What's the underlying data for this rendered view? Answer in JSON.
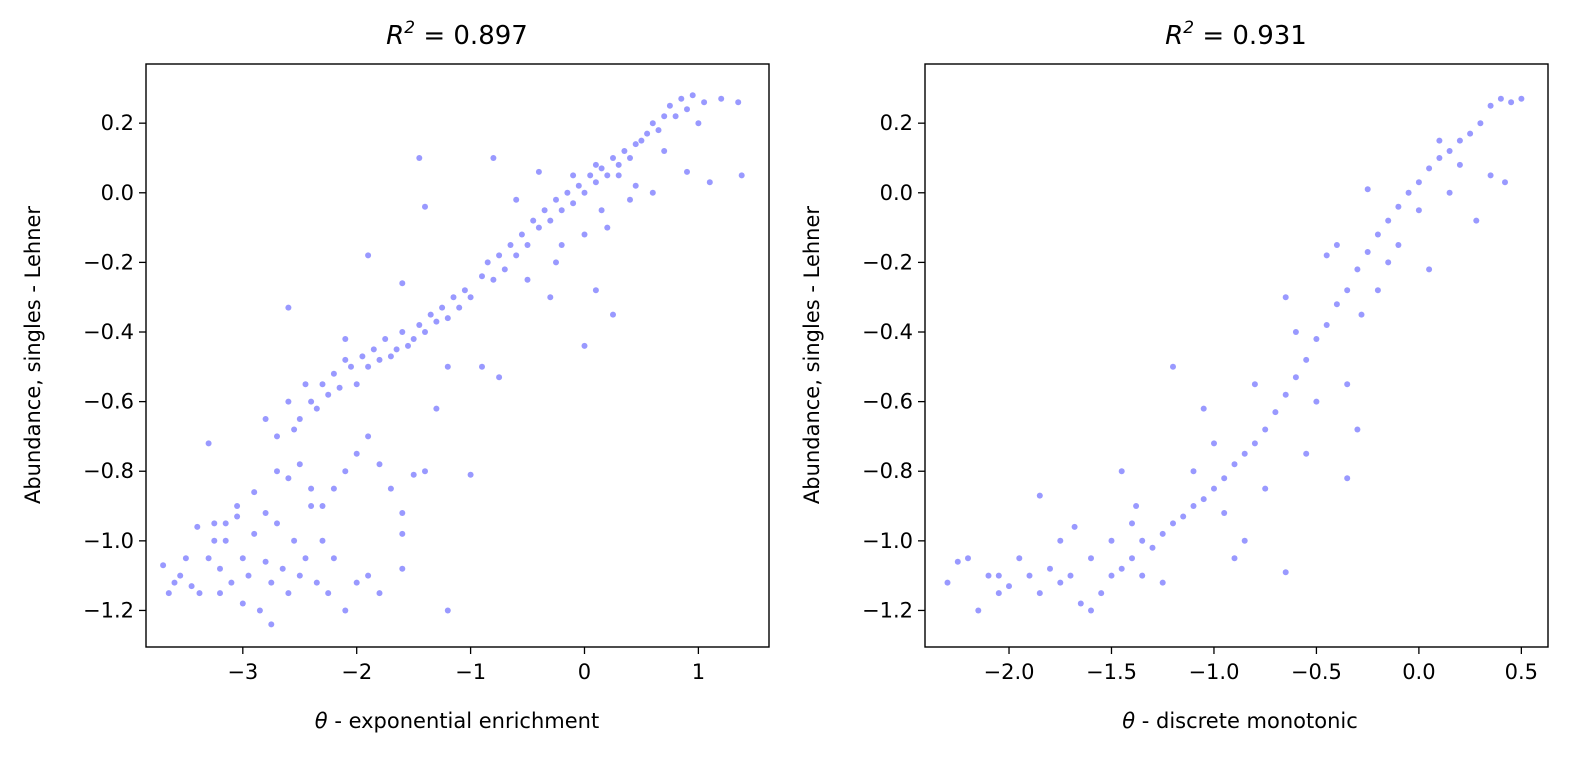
{
  "chart_data": [
    {
      "type": "scatter",
      "title_prefix": "R",
      "title_sup": "2",
      "title_value": "0.897",
      "xlabel_symbol": "θ",
      "xlabel": "- exponential enrichment",
      "ylabel": "Abundance, singles - Lehner",
      "xlim": [
        -3.85,
        1.62
      ],
      "ylim": [
        -1.305,
        0.37
      ],
      "xticks": [
        -3,
        -2,
        -1,
        0,
        1
      ],
      "xtick_labels": [
        "−3",
        "−2",
        "−1",
        "0",
        "1"
      ],
      "yticks": [
        0.2,
        0.0,
        -0.2,
        -0.4,
        -0.6,
        -0.8,
        -1.0,
        -1.2
      ],
      "ytick_labels": [
        "0.2",
        "0.0",
        "−0.2",
        "−0.4",
        "−0.6",
        "−0.8",
        "−1.0",
        "−1.2"
      ],
      "marker_color": "#0000ff",
      "marker_alpha": 0.4,
      "grid": false,
      "points": [
        [
          -3.7,
          -1.07
        ],
        [
          -3.65,
          -1.15
        ],
        [
          -3.6,
          -1.12
        ],
        [
          -3.55,
          -1.1
        ],
        [
          -3.5,
          -1.05
        ],
        [
          -3.45,
          -1.13
        ],
        [
          -3.4,
          -0.96
        ],
        [
          -3.38,
          -1.15
        ],
        [
          -3.3,
          -1.05
        ],
        [
          -3.25,
          -1.0
        ],
        [
          -3.2,
          -1.08
        ],
        [
          -3.2,
          -1.15
        ],
        [
          -3.15,
          -0.95
        ],
        [
          -3.1,
          -1.12
        ],
        [
          -3.05,
          -0.9
        ],
        [
          -3.0,
          -1.05
        ],
        [
          -3.0,
          -1.18
        ],
        [
          -2.95,
          -1.1
        ],
        [
          -2.9,
          -0.98
        ],
        [
          -2.85,
          -1.2
        ],
        [
          -2.8,
          -1.06
        ],
        [
          -2.75,
          -1.12
        ],
        [
          -2.75,
          -1.24
        ],
        [
          -2.7,
          -0.95
        ],
        [
          -2.65,
          -1.08
        ],
        [
          -2.6,
          -1.15
        ],
        [
          -2.55,
          -1.0
        ],
        [
          -2.5,
          -1.1
        ],
        [
          -2.45,
          -1.05
        ],
        [
          -2.4,
          -0.9
        ],
        [
          -2.35,
          -1.12
        ],
        [
          -2.3,
          -1.0
        ],
        [
          -2.25,
          -1.15
        ],
        [
          -2.2,
          -1.05
        ],
        [
          -2.1,
          -1.2
        ],
        [
          -2.0,
          -1.12
        ],
        [
          -1.9,
          -1.1
        ],
        [
          -1.8,
          -1.15
        ],
        [
          -1.6,
          -1.08
        ],
        [
          -1.2,
          -1.2
        ],
        [
          -3.3,
          -0.72
        ],
        [
          -3.25,
          -0.95
        ],
        [
          -3.15,
          -1.0
        ],
        [
          -3.05,
          -0.93
        ],
        [
          -2.9,
          -0.86
        ],
        [
          -2.8,
          -0.92
        ],
        [
          -2.7,
          -0.8
        ],
        [
          -2.6,
          -0.82
        ],
        [
          -2.5,
          -0.78
        ],
        [
          -2.4,
          -0.85
        ],
        [
          -2.3,
          -0.9
        ],
        [
          -2.2,
          -0.85
        ],
        [
          -2.1,
          -0.8
        ],
        [
          -2.0,
          -0.75
        ],
        [
          -1.9,
          -0.7
        ],
        [
          -1.8,
          -0.78
        ],
        [
          -1.7,
          -0.85
        ],
        [
          -1.6,
          -0.92
        ],
        [
          -1.5,
          -0.81
        ],
        [
          -1.4,
          -0.8
        ],
        [
          -1.0,
          -0.81
        ],
        [
          -1.6,
          -0.98
        ],
        [
          -2.8,
          -0.65
        ],
        [
          -2.7,
          -0.7
        ],
        [
          -2.6,
          -0.6
        ],
        [
          -2.55,
          -0.68
        ],
        [
          -2.5,
          -0.65
        ],
        [
          -2.45,
          -0.55
        ],
        [
          -2.4,
          -0.6
        ],
        [
          -2.35,
          -0.62
        ],
        [
          -2.3,
          -0.55
        ],
        [
          -2.25,
          -0.58
        ],
        [
          -2.2,
          -0.52
        ],
        [
          -2.15,
          -0.56
        ],
        [
          -2.1,
          -0.48
        ],
        [
          -2.05,
          -0.5
        ],
        [
          -2.0,
          -0.55
        ],
        [
          -1.95,
          -0.47
        ],
        [
          -1.9,
          -0.5
        ],
        [
          -1.85,
          -0.45
        ],
        [
          -1.8,
          -0.48
        ],
        [
          -1.75,
          -0.42
        ],
        [
          -1.7,
          -0.47
        ],
        [
          -1.65,
          -0.45
        ],
        [
          -1.6,
          -0.4
        ],
        [
          -1.55,
          -0.44
        ],
        [
          -1.5,
          -0.42
        ],
        [
          -1.45,
          -0.38
        ],
        [
          -1.4,
          -0.4
        ],
        [
          -1.35,
          -0.35
        ],
        [
          -1.3,
          -0.37
        ],
        [
          -1.25,
          -0.33
        ],
        [
          -1.2,
          -0.36
        ],
        [
          -1.15,
          -0.3
        ],
        [
          -1.1,
          -0.33
        ],
        [
          -1.05,
          -0.28
        ],
        [
          -1.0,
          -0.3
        ],
        [
          -2.6,
          -0.33
        ],
        [
          -2.1,
          -0.42
        ],
        [
          -1.9,
          -0.18
        ],
        [
          -1.6,
          -0.26
        ],
        [
          -1.45,
          0.1
        ],
        [
          -1.4,
          -0.04
        ],
        [
          -1.2,
          -0.5
        ],
        [
          -0.9,
          -0.5
        ],
        [
          -0.75,
          -0.53
        ],
        [
          -1.3,
          -0.62
        ],
        [
          -0.9,
          -0.24
        ],
        [
          -0.85,
          -0.2
        ],
        [
          -0.8,
          -0.25
        ],
        [
          -0.75,
          -0.18
        ],
        [
          -0.7,
          -0.22
        ],
        [
          -0.65,
          -0.15
        ],
        [
          -0.6,
          -0.18
        ],
        [
          -0.55,
          -0.12
        ],
        [
          -0.5,
          -0.15
        ],
        [
          -0.45,
          -0.08
        ],
        [
          -0.4,
          -0.1
        ],
        [
          -0.35,
          -0.05
        ],
        [
          -0.3,
          -0.08
        ],
        [
          -0.25,
          -0.02
        ],
        [
          -0.2,
          -0.05
        ],
        [
          -0.15,
          0.0
        ],
        [
          -0.1,
          -0.03
        ],
        [
          -0.05,
          0.02
        ],
        [
          0.0,
          0.0
        ],
        [
          0.05,
          0.05
        ],
        [
          0.1,
          0.03
        ],
        [
          0.15,
          0.07
        ],
        [
          0.2,
          0.05
        ],
        [
          0.25,
          0.1
        ],
        [
          0.3,
          0.08
        ],
        [
          0.35,
          0.12
        ],
        [
          0.4,
          0.1
        ],
        [
          0.45,
          0.14
        ],
        [
          0.5,
          0.15
        ],
        [
          0.55,
          0.17
        ],
        [
          0.6,
          0.2
        ],
        [
          0.65,
          0.18
        ],
        [
          0.7,
          0.22
        ],
        [
          0.75,
          0.25
        ],
        [
          0.8,
          0.22
        ],
        [
          0.85,
          0.27
        ],
        [
          0.9,
          0.24
        ],
        [
          0.95,
          0.28
        ],
        [
          1.0,
          0.2
        ],
        [
          1.05,
          0.26
        ],
        [
          1.2,
          0.27
        ],
        [
          1.35,
          0.26
        ],
        [
          1.1,
          0.03
        ],
        [
          1.38,
          0.05
        ],
        [
          0.9,
          0.06
        ],
        [
          0.0,
          -0.44
        ],
        [
          0.1,
          -0.28
        ],
        [
          -0.3,
          -0.3
        ],
        [
          0.25,
          -0.35
        ],
        [
          -0.6,
          -0.02
        ],
        [
          -0.2,
          -0.15
        ],
        [
          0.2,
          -0.1
        ],
        [
          0.4,
          -0.02
        ],
        [
          -0.8,
          0.1
        ],
        [
          -0.4,
          0.06
        ],
        [
          0.6,
          0.0
        ],
        [
          0.7,
          0.12
        ],
        [
          -0.5,
          -0.25
        ],
        [
          0.0,
          -0.12
        ],
        [
          0.3,
          0.05
        ],
        [
          -0.1,
          0.05
        ],
        [
          0.1,
          0.08
        ],
        [
          -0.25,
          -0.2
        ],
        [
          0.45,
          0.02
        ],
        [
          0.15,
          -0.05
        ]
      ]
    },
    {
      "type": "scatter",
      "title_prefix": "R",
      "title_sup": "2",
      "title_value": "0.931",
      "xlabel_symbol": "θ",
      "xlabel": "- discrete monotonic",
      "ylabel": "Abundance, singles - Lehner",
      "xlim": [
        -2.41,
        0.63
      ],
      "ylim": [
        -1.305,
        0.37
      ],
      "xticks": [
        -2.0,
        -1.5,
        -1.0,
        -0.5,
        0.0,
        0.5
      ],
      "xtick_labels": [
        "−2.0",
        "−1.5",
        "−1.0",
        "−0.5",
        "0.0",
        "0.5"
      ],
      "yticks": [
        0.2,
        0.0,
        -0.2,
        -0.4,
        -0.6,
        -0.8,
        -1.0,
        -1.2
      ],
      "ytick_labels": [
        "0.2",
        "0.0",
        "−0.2",
        "−0.4",
        "−0.6",
        "−0.8",
        "−1.0",
        "−1.2"
      ],
      "marker_color": "#0000ff",
      "marker_alpha": 0.4,
      "grid": false,
      "points": [
        [
          -2.3,
          -1.12
        ],
        [
          -2.25,
          -1.06
        ],
        [
          -2.2,
          -1.05
        ],
        [
          -2.15,
          -1.2
        ],
        [
          -2.1,
          -1.1
        ],
        [
          -2.05,
          -1.15
        ],
        [
          -2.0,
          -1.13
        ],
        [
          -1.95,
          -1.05
        ],
        [
          -1.9,
          -1.1
        ],
        [
          -1.85,
          -1.15
        ],
        [
          -1.8,
          -1.08
        ],
        [
          -1.75,
          -1.12
        ],
        [
          -1.7,
          -1.1
        ],
        [
          -1.68,
          -0.96
        ],
        [
          -1.65,
          -1.18
        ],
        [
          -1.6,
          -1.05
        ],
        [
          -1.55,
          -1.15
        ],
        [
          -1.5,
          -1.1
        ],
        [
          -1.45,
          -1.08
        ],
        [
          -1.45,
          -0.8
        ],
        [
          -1.4,
          -1.05
        ],
        [
          -1.38,
          -0.9
        ],
        [
          -1.35,
          -1.0
        ],
        [
          -1.3,
          -1.02
        ],
        [
          -1.25,
          -0.98
        ],
        [
          -1.2,
          -0.95
        ],
        [
          -1.15,
          -0.93
        ],
        [
          -1.1,
          -0.9
        ],
        [
          -1.05,
          -0.88
        ],
        [
          -1.0,
          -0.85
        ],
        [
          -0.95,
          -0.82
        ],
        [
          -0.9,
          -0.78
        ],
        [
          -0.85,
          -0.75
        ],
        [
          -0.8,
          -0.72
        ],
        [
          -0.75,
          -0.68
        ],
        [
          -0.7,
          -0.63
        ],
        [
          -0.65,
          -0.58
        ],
        [
          -0.6,
          -0.53
        ],
        [
          -0.55,
          -0.48
        ],
        [
          -0.5,
          -0.42
        ],
        [
          -0.45,
          -0.38
        ],
        [
          -0.4,
          -0.32
        ],
        [
          -0.35,
          -0.28
        ],
        [
          -0.3,
          -0.22
        ],
        [
          -0.25,
          -0.17
        ],
        [
          -0.2,
          -0.12
        ],
        [
          -0.15,
          -0.08
        ],
        [
          -0.1,
          -0.04
        ],
        [
          -0.05,
          0.0
        ],
        [
          0.0,
          0.03
        ],
        [
          0.05,
          0.07
        ],
        [
          0.1,
          0.1
        ],
        [
          0.15,
          0.12
        ],
        [
          0.2,
          0.15
        ],
        [
          0.25,
          0.17
        ],
        [
          0.3,
          0.2
        ],
        [
          0.35,
          0.25
        ],
        [
          0.4,
          0.27
        ],
        [
          0.45,
          0.26
        ],
        [
          0.5,
          0.27
        ],
        [
          -1.85,
          -0.87
        ],
        [
          -1.2,
          -0.5
        ],
        [
          -1.0,
          -0.72
        ],
        [
          -0.95,
          -0.92
        ],
        [
          -0.9,
          -1.05
        ],
        [
          -0.65,
          -1.09
        ],
        [
          -0.85,
          -1.0
        ],
        [
          -1.05,
          -0.62
        ],
        [
          -0.35,
          -0.82
        ],
        [
          -0.3,
          -0.68
        ],
        [
          -0.2,
          -0.28
        ],
        [
          -0.4,
          -0.15
        ],
        [
          -0.55,
          -0.75
        ],
        [
          -0.65,
          -0.3
        ],
        [
          -0.25,
          0.01
        ],
        [
          0.05,
          -0.22
        ],
        [
          0.1,
          0.15
        ],
        [
          0.28,
          -0.08
        ],
        [
          0.35,
          0.05
        ],
        [
          0.42,
          0.03
        ],
        [
          -0.45,
          -0.18
        ],
        [
          -0.35,
          -0.55
        ],
        [
          -0.6,
          -0.4
        ],
        [
          -0.75,
          -0.85
        ],
        [
          -0.5,
          -0.6
        ],
        [
          -0.15,
          -0.2
        ],
        [
          0.0,
          -0.05
        ],
        [
          0.15,
          0.0
        ],
        [
          0.2,
          0.08
        ],
        [
          -0.1,
          -0.15
        ],
        [
          -0.28,
          -0.35
        ],
        [
          -0.8,
          -0.55
        ],
        [
          -1.1,
          -0.8
        ],
        [
          -1.35,
          -1.1
        ],
        [
          -1.6,
          -1.2
        ],
        [
          -1.75,
          -1.0
        ],
        [
          -2.05,
          -1.1
        ],
        [
          -1.25,
          -1.12
        ],
        [
          -1.5,
          -1.0
        ],
        [
          -1.4,
          -0.95
        ]
      ]
    }
  ]
}
